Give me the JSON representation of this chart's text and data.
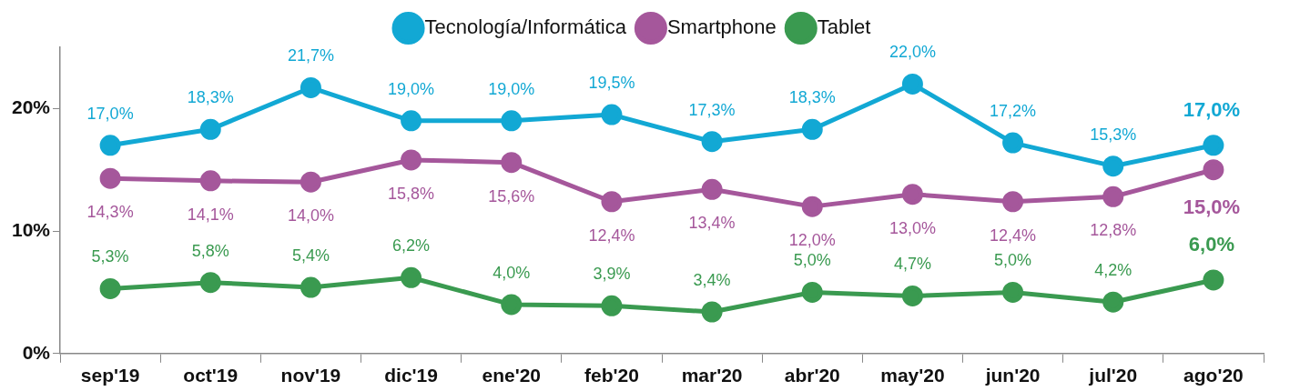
{
  "chart_data": {
    "type": "line",
    "categories": [
      "sep'19",
      "oct'19",
      "nov'19",
      "dic'19",
      "ene'20",
      "feb'20",
      "mar'20",
      "abr'20",
      "may'20",
      "jun'20",
      "jul'20",
      "ago'20"
    ],
    "series": [
      {
        "name": "Tecnología/Informática",
        "color": "#12a8d4",
        "values": [
          17.0,
          18.3,
          21.7,
          19.0,
          19.0,
          19.5,
          17.3,
          18.3,
          22.0,
          17.2,
          15.3,
          17.0
        ],
        "value_labels": [
          "17,0%",
          "18,3%",
          "21,7%",
          "19,0%",
          "19,0%",
          "19,5%",
          "17,3%",
          "18,3%",
          "22,0%",
          "17,2%",
          "15,3%",
          "17,0%"
        ]
      },
      {
        "name": "Smartphone",
        "color": "#a5579b",
        "values": [
          14.3,
          14.1,
          14.0,
          15.8,
          15.6,
          12.4,
          13.4,
          12.0,
          13.0,
          12.4,
          12.8,
          15.0
        ],
        "value_labels": [
          "14,3%",
          "14,1%",
          "14,0%",
          "15,8%",
          "15,6%",
          "12,4%",
          "13,4%",
          "12,0%",
          "13,0%",
          "12,4%",
          "12,8%",
          "15,0%"
        ]
      },
      {
        "name": "Tablet",
        "color": "#3a9a50",
        "values": [
          5.3,
          5.8,
          5.4,
          6.2,
          4.0,
          3.9,
          3.4,
          5.0,
          4.7,
          5.0,
          4.2,
          6.0
        ],
        "value_labels": [
          "5,3%",
          "5,8%",
          "5,4%",
          "6,2%",
          "4,0%",
          "3,9%",
          "3,4%",
          "5,0%",
          "4,7%",
          "5,0%",
          "4,2%",
          "6,0%"
        ]
      }
    ],
    "ylim": [
      0,
      25
    ],
    "yticks": [
      {
        "value": 0,
        "label": "0%"
      },
      {
        "value": 10,
        "label": "10%"
      },
      {
        "value": 20,
        "label": "20%"
      }
    ],
    "grid": false,
    "legend": "top",
    "marker": "circle",
    "line_style": "solid"
  }
}
